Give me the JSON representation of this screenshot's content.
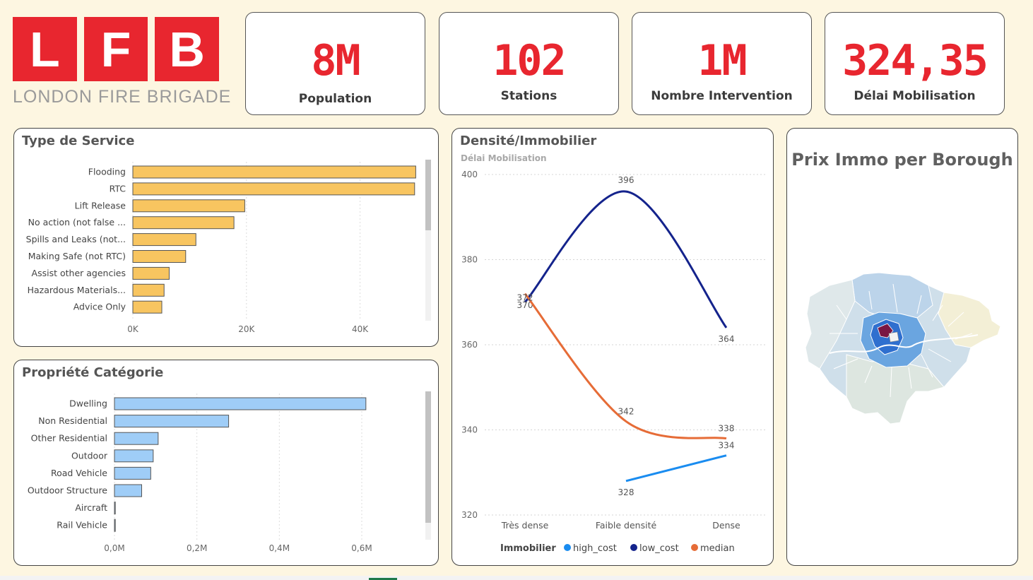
{
  "logo": {
    "letters": [
      "L",
      "F",
      "B"
    ],
    "subtitle": "LONDON FIRE BRIGADE",
    "color": "#e8262f"
  },
  "kpis": [
    {
      "value": "8M",
      "label": "Population"
    },
    {
      "value": "102",
      "label": "Stations"
    },
    {
      "value": "1M",
      "label": "Nombre Intervention"
    },
    {
      "value": "324,35",
      "label": "Délai Mobilisation"
    }
  ],
  "service": {
    "title": "Type de Service"
  },
  "propriete": {
    "title": "Propriété Catégorie"
  },
  "densite": {
    "title": "Densité/Immobilier",
    "subtitle": "Délai Mobilisation"
  },
  "map": {
    "title": "Prix Immo per Borough"
  },
  "chart_data": [
    {
      "type": "bar",
      "orientation": "horizontal",
      "title": "Type de Service",
      "categories": [
        "Flooding",
        "RTC",
        "Lift Release",
        "No action (not false ...",
        "Spills and Leaks (not...",
        "Making Safe (not RTC)",
        "Assist other agencies",
        "Hazardous Materials...",
        "Advice Only"
      ],
      "values": [
        49800,
        49600,
        19700,
        17800,
        11100,
        9300,
        6400,
        5500,
        5100
      ],
      "tick_labels": [
        "0K",
        "20K",
        "40K"
      ],
      "xlim": [
        0,
        50000
      ],
      "grid": true,
      "color": "#f8c560"
    },
    {
      "type": "bar",
      "orientation": "horizontal",
      "title": "Propriété Catégorie",
      "categories": [
        "Dwelling",
        "Non Residential",
        "Other Residential",
        "Outdoor",
        "Road Vehicle",
        "Outdoor Structure",
        "Aircraft",
        "Rail Vehicle"
      ],
      "values": [
        0.61,
        0.277,
        0.106,
        0.094,
        0.088,
        0.066,
        0.002,
        0.002
      ],
      "tick_labels": [
        "0,0M",
        "0,2M",
        "0,4M",
        "0,6M"
      ],
      "xlim": [
        0,
        0.72
      ],
      "grid": true,
      "color": "#9fcdf7"
    },
    {
      "type": "line",
      "title": "Densité/Immobilier",
      "subtitle": "Délai Mobilisation",
      "categories": [
        "Très dense",
        "Faible densité",
        "Dense"
      ],
      "ylim": [
        320,
        400
      ],
      "y_ticks": [
        320,
        340,
        360,
        380,
        400
      ],
      "legend_title": "Immobilier",
      "legend_position": "bottom",
      "grid": true,
      "series": [
        {
          "name": "high_cost",
          "color": "#1a8cf0",
          "values": [
            null,
            328,
            334
          ],
          "labels": [
            "",
            "328",
            "334"
          ]
        },
        {
          "name": "low_cost",
          "color": "#14238c",
          "values": [
            370,
            396,
            364
          ],
          "labels": [
            "370",
            "396",
            "364"
          ]
        },
        {
          "name": "median",
          "color": "#e66c37",
          "values": [
            372,
            342,
            338
          ],
          "labels": [
            "372",
            "342",
            "338"
          ]
        }
      ]
    }
  ]
}
